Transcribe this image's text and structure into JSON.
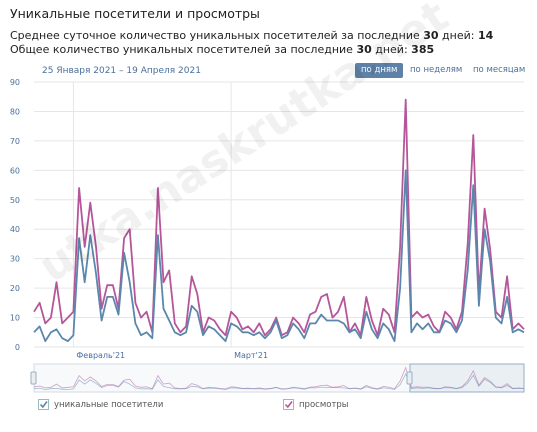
{
  "header": {
    "title": "Уникальные посетители и просмотры",
    "stat1_label": "Среднее суточное количество уникальных посетителей за последние ",
    "stat1_days": "30",
    "stat1_mid": " дней: ",
    "stat1_value": "14",
    "stat2_label": "Общее количество уникальных посетителей за последние ",
    "stat2_days": "30",
    "stat2_mid": " дней: ",
    "stat2_value": "385"
  },
  "controls": {
    "date_range": "25 Января 2021 – 19 Апреля 2021",
    "by_days": "по дням",
    "by_weeks": "по неделям",
    "by_months": "по месяцам",
    "active": "по дням"
  },
  "legend": {
    "visitors": "уникальные посетители",
    "views": "просмотры"
  },
  "watermark": "utka.naskrutka.net",
  "colors": {
    "visitors": "#5b87ad",
    "views": "#b5569a",
    "grid": "#e6e6e6",
    "axis_text": "#4a6f9c",
    "active_button": "#5e81a8"
  },
  "chart_data": {
    "type": "line",
    "x_start": "2021-01-25",
    "x_end": "2021-04-19",
    "x_tick_labels": [
      "Февраль'21",
      "Март'21"
    ],
    "ylim": [
      0,
      90
    ],
    "y_ticks": [
      0,
      10,
      20,
      30,
      40,
      50,
      60,
      70,
      80,
      90
    ],
    "grid": true,
    "legend_position": "bottom-left",
    "series": [
      {
        "name": "уникальные посетители",
        "color": "#5b87ad",
        "values": [
          5,
          7,
          2,
          5,
          6,
          3,
          2,
          4,
          37,
          22,
          38,
          25,
          9,
          17,
          17,
          11,
          32,
          22,
          8,
          4,
          5,
          3,
          38,
          13,
          9,
          5,
          4,
          5,
          14,
          12,
          4,
          7,
          6,
          4,
          2,
          8,
          7,
          5,
          5,
          4,
          5,
          3,
          5,
          9,
          3,
          4,
          8,
          6,
          3,
          8,
          8,
          11,
          9,
          9,
          9,
          8,
          5,
          6,
          3,
          12,
          6,
          3,
          8,
          6,
          2,
          20,
          60,
          5,
          8,
          6,
          8,
          5,
          5,
          9,
          8,
          5,
          9,
          26,
          55,
          14,
          40,
          29,
          10,
          8,
          17,
          5,
          6,
          5
        ]
      },
      {
        "name": "просмотры",
        "color": "#b5569a",
        "values": [
          12,
          15,
          8,
          10,
          22,
          8,
          10,
          12,
          54,
          34,
          49,
          34,
          13,
          21,
          21,
          13,
          37,
          40,
          15,
          10,
          12,
          5,
          54,
          22,
          26,
          8,
          5,
          7,
          24,
          18,
          5,
          10,
          9,
          6,
          4,
          12,
          10,
          6,
          7,
          5,
          8,
          4,
          6,
          10,
          4,
          5,
          10,
          8,
          5,
          11,
          12,
          17,
          18,
          10,
          12,
          17,
          5,
          8,
          4,
          17,
          9,
          4,
          13,
          11,
          5,
          34,
          84,
          10,
          12,
          10,
          11,
          7,
          5,
          12,
          10,
          6,
          12,
          35,
          72,
          18,
          47,
          33,
          12,
          10,
          24,
          6,
          8,
          6
        ]
      }
    ]
  }
}
